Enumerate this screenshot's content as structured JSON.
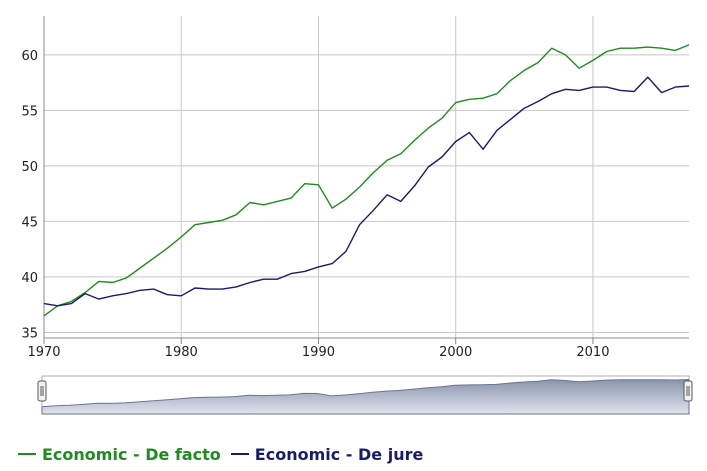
{
  "chart_data": {
    "type": "line",
    "xlim": [
      1970,
      2017
    ],
    "ylim": [
      34.5,
      63.5
    ],
    "x_ticks": [
      1970,
      1980,
      1990,
      2000,
      2010
    ],
    "y_ticks": [
      35,
      40,
      45,
      50,
      55,
      60
    ],
    "grid": true,
    "legend_position": "bottom-left",
    "x": [
      1970,
      1971,
      1972,
      1973,
      1974,
      1975,
      1976,
      1977,
      1978,
      1979,
      1980,
      1981,
      1982,
      1983,
      1984,
      1985,
      1986,
      1987,
      1988,
      1989,
      1990,
      1991,
      1992,
      1993,
      1994,
      1995,
      1996,
      1997,
      1998,
      1999,
      2000,
      2001,
      2002,
      2003,
      2004,
      2005,
      2006,
      2007,
      2008,
      2009,
      2010,
      2011,
      2012,
      2013,
      2014,
      2015,
      2016,
      2017
    ],
    "series": [
      {
        "name": "Economic - De facto",
        "color": "#1f8c1f",
        "values": [
          36.5,
          37.4,
          37.8,
          38.6,
          39.6,
          39.5,
          39.9,
          40.8,
          41.7,
          42.6,
          43.6,
          44.7,
          44.9,
          45.1,
          45.6,
          46.7,
          46.5,
          46.8,
          47.1,
          48.4,
          48.3,
          46.2,
          47.0,
          48.1,
          49.4,
          50.5,
          51.1,
          52.3,
          53.4,
          54.3,
          55.7,
          56.0,
          56.1,
          56.5,
          57.7,
          58.6,
          59.3,
          60.6,
          60.0,
          58.8,
          59.5,
          60.3,
          60.6,
          60.6,
          60.7,
          60.6,
          60.4,
          60.9
        ]
      },
      {
        "name": "Economic - De jure",
        "color": "#1a1a6e",
        "values": [
          37.6,
          37.4,
          37.6,
          38.5,
          38.0,
          38.3,
          38.5,
          38.8,
          38.9,
          38.4,
          38.3,
          39.0,
          38.9,
          38.9,
          39.1,
          39.5,
          39.8,
          39.8,
          40.3,
          40.5,
          40.9,
          41.2,
          42.3,
          44.7,
          46.0,
          47.4,
          46.8,
          48.2,
          49.9,
          50.8,
          52.2,
          53.0,
          51.5,
          53.2,
          54.2,
          55.2,
          55.8,
          56.5,
          56.9,
          56.8,
          57.1,
          57.1,
          56.8,
          56.7,
          58.0,
          56.6,
          57.1,
          57.2
        ]
      }
    ]
  }
}
